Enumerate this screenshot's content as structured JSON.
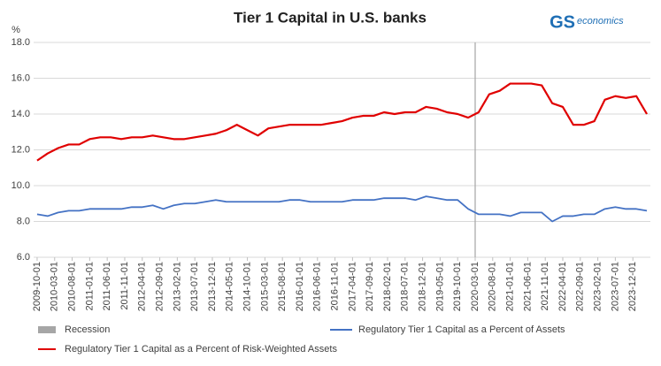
{
  "chart_data": {
    "type": "line",
    "title": "Tier 1 Capital in U.S. banks",
    "y_label": "%",
    "logo": {
      "mark": "GS",
      "text": "economics"
    },
    "x": [
      "2009-10-01",
      "2010-01-01",
      "2010-04-01",
      "2010-07-01",
      "2010-10-01",
      "2011-01-01",
      "2011-04-01",
      "2011-07-01",
      "2011-10-01",
      "2012-01-01",
      "2012-04-01",
      "2012-07-01",
      "2012-10-01",
      "2013-01-01",
      "2013-04-01",
      "2013-07-01",
      "2013-10-01",
      "2014-01-01",
      "2014-04-01",
      "2014-07-01",
      "2014-10-01",
      "2015-01-01",
      "2015-04-01",
      "2015-07-01",
      "2015-10-01",
      "2016-01-01",
      "2016-04-01",
      "2016-07-01",
      "2016-10-01",
      "2017-01-01",
      "2017-04-01",
      "2017-07-01",
      "2017-10-01",
      "2018-01-01",
      "2018-04-01",
      "2018-07-01",
      "2018-10-01",
      "2019-01-01",
      "2019-04-01",
      "2019-07-01",
      "2019-10-01",
      "2020-01-01",
      "2020-04-01",
      "2020-07-01",
      "2020-10-01",
      "2021-01-01",
      "2021-04-01",
      "2021-07-01",
      "2021-10-01",
      "2022-01-01",
      "2022-04-01",
      "2022-07-01",
      "2022-10-01",
      "2023-01-01",
      "2023-04-01",
      "2023-07-01",
      "2023-10-01",
      "2024-01-01",
      "2024-04-01"
    ],
    "xlim": [
      "2009-09-01",
      "2024-05-01"
    ],
    "xticks": [
      "2009-10-01",
      "2010-03-01",
      "2010-08-01",
      "2011-01-01",
      "2011-06-01",
      "2011-11-01",
      "2012-04-01",
      "2012-09-01",
      "2013-02-01",
      "2013-07-01",
      "2013-12-01",
      "2014-05-01",
      "2014-10-01",
      "2015-03-01",
      "2015-08-01",
      "2016-01-01",
      "2016-06-01",
      "2016-11-01",
      "2017-04-01",
      "2017-09-01",
      "2018-02-01",
      "2018-07-01",
      "2018-12-01",
      "2019-05-01",
      "2019-10-01",
      "2020-03-01",
      "2020-08-01",
      "2021-01-01",
      "2021-06-01",
      "2021-11-01",
      "2022-04-01",
      "2022-09-01",
      "2023-02-01",
      "2023-07-01",
      "2023-12-01"
    ],
    "ylim": [
      6,
      18
    ],
    "yticks": [
      {
        "value": 6,
        "label": "6.0"
      },
      {
        "value": 8,
        "label": "8.0"
      },
      {
        "value": 10,
        "label": "10.0"
      },
      {
        "value": 12,
        "label": "12.0"
      },
      {
        "value": 14,
        "label": "14.0"
      },
      {
        "value": 16,
        "label": "16.0"
      },
      {
        "value": 18,
        "label": "18.0"
      }
    ],
    "grid": true,
    "recession": {
      "name": "Recession",
      "color": "#a6a6a6",
      "dates": [
        "2020-03-01"
      ]
    },
    "series": [
      {
        "name": "Regulatory Tier 1 Capital as a Percent of Assets",
        "color": "#4472c4",
        "values": [
          8.4,
          8.3,
          8.5,
          8.6,
          8.6,
          8.7,
          8.7,
          8.7,
          8.7,
          8.8,
          8.8,
          8.9,
          8.7,
          8.9,
          9.0,
          9.0,
          9.1,
          9.2,
          9.1,
          9.1,
          9.1,
          9.1,
          9.1,
          9.1,
          9.2,
          9.2,
          9.1,
          9.1,
          9.1,
          9.1,
          9.2,
          9.2,
          9.2,
          9.3,
          9.3,
          9.3,
          9.2,
          9.4,
          9.3,
          9.2,
          9.2,
          8.7,
          8.4,
          8.4,
          8.4,
          8.3,
          8.5,
          8.5,
          8.5,
          8.0,
          8.3,
          8.3,
          8.4,
          8.4,
          8.7,
          8.8,
          8.7,
          8.7,
          8.6
        ]
      },
      {
        "name": "Regulatory Tier 1 Capital as a Percent of Risk-Weighted Assets",
        "color": "#e00000",
        "values": [
          11.4,
          11.8,
          12.1,
          12.3,
          12.3,
          12.6,
          12.7,
          12.7,
          12.6,
          12.7,
          12.7,
          12.8,
          12.7,
          12.6,
          12.6,
          12.7,
          12.8,
          12.9,
          13.1,
          13.4,
          13.1,
          12.8,
          13.2,
          13.3,
          13.4,
          13.4,
          13.4,
          13.4,
          13.5,
          13.6,
          13.8,
          13.9,
          13.9,
          14.1,
          14.0,
          14.1,
          14.1,
          14.4,
          14.3,
          14.1,
          14.0,
          13.8,
          14.1,
          15.1,
          15.3,
          15.7,
          15.7,
          15.7,
          15.6,
          14.6,
          14.4,
          13.4,
          13.4,
          13.6,
          14.8,
          15.0,
          14.9,
          15.0,
          14.0
        ]
      }
    ]
  }
}
